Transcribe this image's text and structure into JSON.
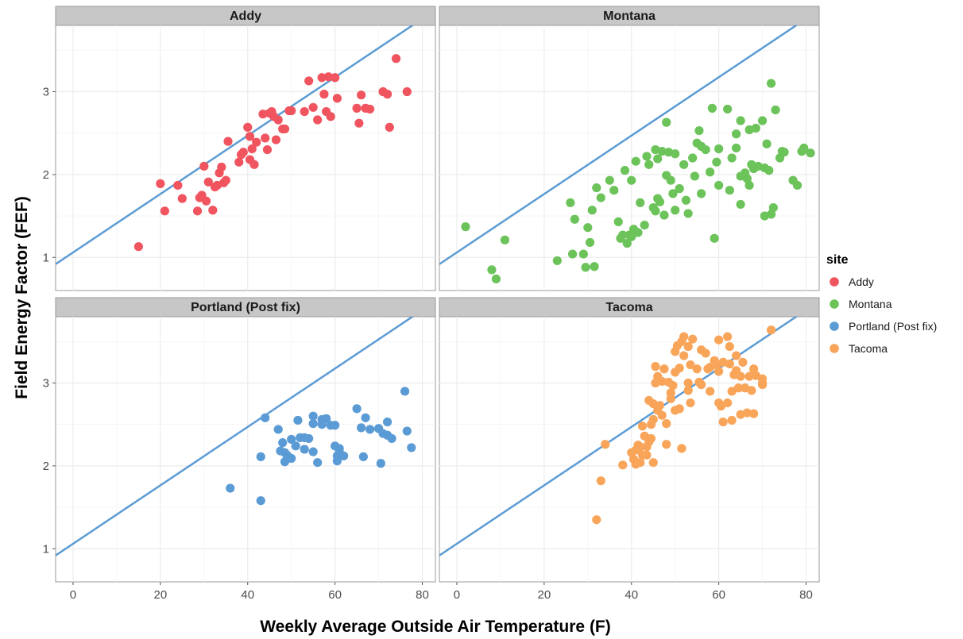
{
  "chart_data": {
    "type": "scatter",
    "xlabel": "Weekly Average Outside Air Temperature (F)",
    "ylabel": "Field Energy Factor (FEF)",
    "xlim": [
      -4,
      83
    ],
    "ylim": [
      0.6,
      3.8
    ],
    "x_ticks": [
      0,
      20,
      40,
      60,
      80
    ],
    "y_ticks": [
      1,
      2,
      3
    ],
    "grid": true,
    "legend": {
      "title": "site",
      "placement": "right"
    },
    "reference_line": {
      "intercept": 1.06,
      "slope": 0.03525,
      "color": "#5b9bd5"
    },
    "panels": [
      {
        "name": "Addy",
        "color": "#f0545f",
        "points": [
          [
            15,
            1.13
          ],
          [
            20,
            1.89
          ],
          [
            21,
            1.56
          ],
          [
            24,
            1.87
          ],
          [
            25,
            1.71
          ],
          [
            28.5,
            1.56
          ],
          [
            29,
            1.72
          ],
          [
            29.5,
            1.75
          ],
          [
            30,
            2.1
          ],
          [
            30.5,
            1.68
          ],
          [
            31,
            1.91
          ],
          [
            32,
            1.57
          ],
          [
            32.5,
            1.85
          ],
          [
            33,
            1.87
          ],
          [
            33.5,
            2.02
          ],
          [
            34,
            2.09
          ],
          [
            34.5,
            1.9
          ],
          [
            35,
            1.93
          ],
          [
            35.5,
            2.4
          ],
          [
            38,
            2.15
          ],
          [
            38.5,
            2.24
          ],
          [
            39,
            2.27
          ],
          [
            40,
            2.57
          ],
          [
            40.5,
            2.46
          ],
          [
            40.5,
            2.18
          ],
          [
            41,
            2.31
          ],
          [
            41.5,
            2.12
          ],
          [
            42,
            2.39
          ],
          [
            43.5,
            2.73
          ],
          [
            44,
            2.44
          ],
          [
            44.5,
            2.3
          ],
          [
            45,
            2.74
          ],
          [
            45.5,
            2.76
          ],
          [
            46,
            2.7
          ],
          [
            46.5,
            2.42
          ],
          [
            47,
            2.66
          ],
          [
            48,
            2.55
          ],
          [
            48.5,
            2.55
          ],
          [
            49.5,
            2.77
          ],
          [
            50,
            2.77
          ],
          [
            53,
            2.76
          ],
          [
            54,
            3.13
          ],
          [
            55,
            2.81
          ],
          [
            56,
            2.66
          ],
          [
            57,
            3.17
          ],
          [
            57.5,
            2.97
          ],
          [
            58,
            2.76
          ],
          [
            58.5,
            3.18
          ],
          [
            59,
            2.7
          ],
          [
            60,
            3.17
          ],
          [
            60.5,
            2.92
          ],
          [
            65,
            2.8
          ],
          [
            65.5,
            2.62
          ],
          [
            66,
            2.96
          ],
          [
            67,
            2.8
          ],
          [
            68,
            2.79
          ],
          [
            71,
            3.0
          ],
          [
            72,
            2.97
          ],
          [
            72.5,
            2.57
          ],
          [
            74,
            3.4
          ],
          [
            76.5,
            3.0
          ]
        ]
      },
      {
        "name": "Montana",
        "color": "#6cc35a",
        "points": [
          [
            2,
            1.37
          ],
          [
            8,
            0.85
          ],
          [
            9,
            0.74
          ],
          [
            11,
            1.21
          ],
          [
            23,
            0.96
          ],
          [
            26,
            1.66
          ],
          [
            26.5,
            1.04
          ],
          [
            27,
            1.46
          ],
          [
            29,
            1.04
          ],
          [
            29.5,
            0.88
          ],
          [
            30,
            1.36
          ],
          [
            30.5,
            1.18
          ],
          [
            31,
            1.57
          ],
          [
            31.5,
            0.89
          ],
          [
            32,
            1.84
          ],
          [
            33,
            1.72
          ],
          [
            35,
            1.93
          ],
          [
            36,
            1.81
          ],
          [
            37,
            1.43
          ],
          [
            37.5,
            1.23
          ],
          [
            38,
            1.27
          ],
          [
            38.5,
            2.05
          ],
          [
            39,
            1.17
          ],
          [
            39.5,
            1.27
          ],
          [
            40,
            1.93
          ],
          [
            40,
            1.25
          ],
          [
            40.5,
            1.34
          ],
          [
            41,
            2.16
          ],
          [
            41.5,
            1.3
          ],
          [
            42,
            1.66
          ],
          [
            43,
            1.39
          ],
          [
            43.5,
            2.22
          ],
          [
            44,
            2.12
          ],
          [
            45,
            1.6
          ],
          [
            45.5,
            2.3
          ],
          [
            45.5,
            1.56
          ],
          [
            46,
            2.19
          ],
          [
            46,
            1.71
          ],
          [
            46.5,
            1.67
          ],
          [
            47,
            2.28
          ],
          [
            47.5,
            1.51
          ],
          [
            48,
            2.63
          ],
          [
            48,
            1.99
          ],
          [
            48.5,
            2.27
          ],
          [
            49,
            1.93
          ],
          [
            49.5,
            1.77
          ],
          [
            50,
            2.25
          ],
          [
            50,
            1.57
          ],
          [
            51,
            1.83
          ],
          [
            52,
            2.12
          ],
          [
            52.5,
            1.69
          ],
          [
            53,
            1.53
          ],
          [
            54,
            2.2
          ],
          [
            54.5,
            1.98
          ],
          [
            55,
            2.38
          ],
          [
            55.5,
            2.53
          ],
          [
            56,
            2.34
          ],
          [
            56,
            1.77
          ],
          [
            57,
            2.3
          ],
          [
            58,
            2.03
          ],
          [
            58.5,
            2.8
          ],
          [
            59,
            1.23
          ],
          [
            59.5,
            2.15
          ],
          [
            60,
            2.31
          ],
          [
            60,
            1.87
          ],
          [
            62,
            2.79
          ],
          [
            62.5,
            1.81
          ],
          [
            63,
            2.2
          ],
          [
            64,
            2.49
          ],
          [
            64,
            2.32
          ],
          [
            65,
            2.65
          ],
          [
            65,
            1.98
          ],
          [
            65,
            1.64
          ],
          [
            66,
            2.02
          ],
          [
            66.5,
            1.95
          ],
          [
            67,
            2.54
          ],
          [
            67,
            1.87
          ],
          [
            67.5,
            2.12
          ],
          [
            68,
            2.07
          ],
          [
            68.5,
            2.56
          ],
          [
            69,
            2.1
          ],
          [
            70,
            2.65
          ],
          [
            70.5,
            2.08
          ],
          [
            70.5,
            1.5
          ],
          [
            71,
            2.37
          ],
          [
            71.5,
            2.05
          ],
          [
            72,
            3.1
          ],
          [
            72,
            1.52
          ],
          [
            72.5,
            1.6
          ],
          [
            73,
            2.78
          ],
          [
            74,
            2.2
          ],
          [
            74.5,
            2.28
          ],
          [
            75,
            2.27
          ],
          [
            77,
            1.93
          ],
          [
            78,
            1.87
          ],
          [
            79,
            2.28
          ],
          [
            79.5,
            2.32
          ],
          [
            81,
            2.26
          ]
        ]
      },
      {
        "name": "Portland (Post fix)",
        "color": "#5b9bd5",
        "points": [
          [
            36,
            1.73
          ],
          [
            43,
            2.11
          ],
          [
            43,
            1.58
          ],
          [
            44,
            2.58
          ],
          [
            47,
            2.44
          ],
          [
            47.5,
            2.18
          ],
          [
            48,
            2.28
          ],
          [
            48.5,
            2.16
          ],
          [
            48.5,
            2.05
          ],
          [
            49,
            2.13
          ],
          [
            49.5,
            2.1
          ],
          [
            50,
            2.32
          ],
          [
            50,
            2.09
          ],
          [
            51,
            2.24
          ],
          [
            51.5,
            2.55
          ],
          [
            52,
            2.34
          ],
          [
            53,
            2.2
          ],
          [
            53,
            2.34
          ],
          [
            54,
            2.33
          ],
          [
            55,
            2.6
          ],
          [
            55,
            2.51
          ],
          [
            55,
            2.17
          ],
          [
            56,
            2.04
          ],
          [
            57,
            2.56
          ],
          [
            57,
            2.5
          ],
          [
            58,
            2.57
          ],
          [
            59,
            2.49
          ],
          [
            60,
            2.24
          ],
          [
            60,
            2.49
          ],
          [
            60.5,
            2.12
          ],
          [
            60.5,
            2.06
          ],
          [
            61,
            2.17
          ],
          [
            61,
            2.21
          ],
          [
            62,
            2.12
          ],
          [
            65,
            2.69
          ],
          [
            66,
            2.46
          ],
          [
            66.5,
            2.11
          ],
          [
            67,
            2.58
          ],
          [
            68,
            2.44
          ],
          [
            70,
            2.45
          ],
          [
            70,
            2.45
          ],
          [
            70.5,
            2.03
          ],
          [
            71,
            2.39
          ],
          [
            72,
            2.53
          ],
          [
            72,
            2.37
          ],
          [
            73,
            2.33
          ],
          [
            76,
            2.9
          ],
          [
            76.5,
            2.42
          ],
          [
            77.5,
            2.22
          ]
        ]
      },
      {
        "name": "Tacoma",
        "color": "#f8a55a",
        "points": [
          [
            32,
            1.35
          ],
          [
            33,
            1.82
          ],
          [
            34,
            2.26
          ],
          [
            38,
            2.01
          ],
          [
            40,
            2.16
          ],
          [
            40.5,
            2.08
          ],
          [
            41,
            2.19
          ],
          [
            41,
            2.02
          ],
          [
            41.5,
            2.25
          ],
          [
            42,
            2.23
          ],
          [
            42,
            2.04
          ],
          [
            42.5,
            2.48
          ],
          [
            42.5,
            2.13
          ],
          [
            43,
            2.36
          ],
          [
            43.5,
            2.13
          ],
          [
            43.5,
            2.23
          ],
          [
            44,
            2.29
          ],
          [
            44,
            2.79
          ],
          [
            44.5,
            2.5
          ],
          [
            44.5,
            2.33
          ],
          [
            45,
            2.56
          ],
          [
            45,
            2.04
          ],
          [
            45,
            2.75
          ],
          [
            45.5,
            3.2
          ],
          [
            45.5,
            3.0
          ],
          [
            46,
            2.67
          ],
          [
            46,
            3.08
          ],
          [
            46.5,
            2.73
          ],
          [
            47,
            3.02
          ],
          [
            47,
            2.61
          ],
          [
            47.5,
            3.17
          ],
          [
            48,
            2.51
          ],
          [
            48,
            2.26
          ],
          [
            48.5,
            3.01
          ],
          [
            49,
            2.81
          ],
          [
            49,
            2.88
          ],
          [
            49.5,
            2.97
          ],
          [
            50,
            3.38
          ],
          [
            50,
            3.13
          ],
          [
            50,
            2.67
          ],
          [
            50.5,
            3.45
          ],
          [
            51,
            3.18
          ],
          [
            51,
            2.69
          ],
          [
            51.5,
            3.5
          ],
          [
            51.5,
            2.21
          ],
          [
            52,
            3.56
          ],
          [
            52,
            3.33
          ],
          [
            53,
            3.44
          ],
          [
            53,
            3.0
          ],
          [
            53,
            2.91
          ],
          [
            53.5,
            3.22
          ],
          [
            53.5,
            2.76
          ],
          [
            54,
            3.53
          ],
          [
            55,
            3.17
          ],
          [
            55.5,
            3.01
          ],
          [
            56,
            3.4
          ],
          [
            56,
            2.98
          ],
          [
            57,
            3.36
          ],
          [
            57.5,
            3.17
          ],
          [
            58,
            3.19
          ],
          [
            58,
            2.9
          ],
          [
            59,
            3.27
          ],
          [
            59.5,
            3.22
          ],
          [
            60,
            2.76
          ],
          [
            60,
            3.52
          ],
          [
            60,
            3.14
          ],
          [
            60.5,
            2.72
          ],
          [
            61,
            3.25
          ],
          [
            61,
            2.53
          ],
          [
            62,
            2.76
          ],
          [
            62,
            3.56
          ],
          [
            62.5,
            3.44
          ],
          [
            62.5,
            3.23
          ],
          [
            63,
            2.9
          ],
          [
            63,
            2.55
          ],
          [
            63.5,
            3.1
          ],
          [
            64,
            3.33
          ],
          [
            64,
            3.15
          ],
          [
            64.5,
            2.94
          ],
          [
            65,
            2.62
          ],
          [
            65,
            3.08
          ],
          [
            65.5,
            3.25
          ],
          [
            66,
            2.94
          ],
          [
            66.5,
            2.64
          ],
          [
            67,
            3.08
          ],
          [
            67.5,
            2.91
          ],
          [
            68,
            3.17
          ],
          [
            68,
            2.63
          ],
          [
            68.5,
            3.09
          ],
          [
            70,
            3.0
          ],
          [
            70,
            3.05
          ],
          [
            70,
            2.98
          ],
          [
            72,
            3.64
          ]
        ]
      }
    ]
  },
  "legend": {
    "title": "site",
    "items": [
      "Addy",
      "Montana",
      "Portland (Post fix)",
      "Tacoma"
    ]
  },
  "colors": {
    "strip_bg": "#c7c7c7",
    "gridline": "#ececec",
    "reference_line": "#5b9bd5"
  }
}
